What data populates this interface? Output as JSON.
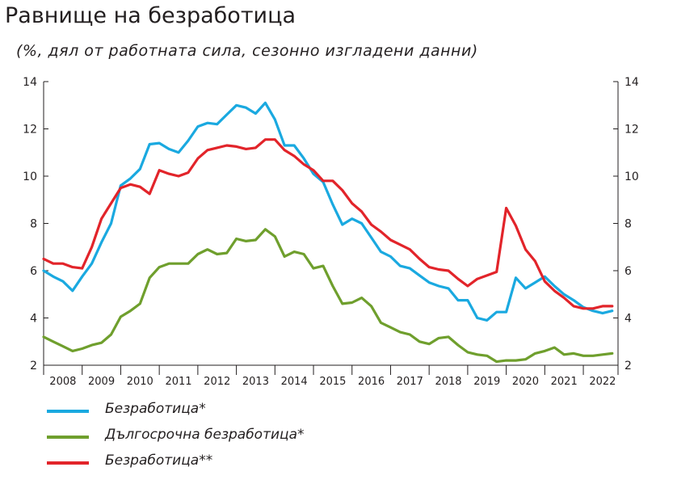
{
  "chart_data": {
    "type": "line",
    "title": "Равнище на безработица",
    "subtitle": "(%, дял от работната сила, сезонно изгладени данни)",
    "ylim": [
      2,
      14
    ],
    "yticks": [
      "2",
      "4",
      "6",
      "8",
      "10",
      "12",
      "14"
    ],
    "xlim": [
      2007.5,
      2022.4
    ],
    "year_labels": [
      "2008",
      "2009",
      "2010",
      "2011",
      "2012",
      "2013",
      "2014",
      "2015",
      "2016",
      "2017",
      "2018",
      "2019",
      "2020",
      "2021",
      "2022"
    ],
    "grid": false,
    "legend_position": "bottom-left",
    "series": [
      {
        "name": "Безработица*",
        "color": "#1aa9e0",
        "x": [
          2007.5,
          2007.75,
          2008.0,
          2008.25,
          2008.5,
          2008.75,
          2009.0,
          2009.25,
          2009.5,
          2009.75,
          2010.0,
          2010.25,
          2010.5,
          2010.75,
          2011.0,
          2011.25,
          2011.5,
          2011.75,
          2012.0,
          2012.25,
          2012.5,
          2012.75,
          2013.0,
          2013.25,
          2013.5,
          2013.75,
          2014.0,
          2014.25,
          2014.5,
          2014.75,
          2015.0,
          2015.25,
          2015.5,
          2015.75,
          2016.0,
          2016.25,
          2016.5,
          2016.75,
          2017.0,
          2017.25,
          2017.5,
          2017.75,
          2018.0,
          2018.25,
          2018.5,
          2018.75,
          2019.0,
          2019.25,
          2019.5,
          2019.75,
          2020.0,
          2020.25,
          2020.5,
          2020.75,
          2021.0,
          2021.25,
          2021.5,
          2021.75,
          2022.0,
          2022.25
        ],
        "y": [
          6.0,
          5.75,
          5.55,
          5.15,
          5.75,
          6.3,
          7.2,
          8.0,
          9.6,
          9.9,
          10.3,
          11.35,
          11.4,
          11.15,
          11.0,
          11.5,
          12.1,
          12.25,
          12.2,
          12.6,
          13.0,
          12.9,
          12.65,
          13.1,
          12.4,
          11.3,
          11.3,
          10.75,
          10.1,
          9.75,
          8.8,
          7.95,
          8.2,
          8.0,
          7.4,
          6.8,
          6.6,
          6.2,
          6.1,
          5.8,
          5.5,
          5.35,
          5.25,
          4.75,
          4.75,
          4.0,
          3.9,
          4.25,
          4.25,
          5.7,
          5.25,
          5.5,
          5.75,
          5.35,
          5.0,
          4.75,
          4.45,
          4.3,
          4.2,
          4.3
        ]
      },
      {
        "name": "Дългосрочна безработица*",
        "color": "#6f9f2d",
        "x": [
          2007.5,
          2007.75,
          2008.0,
          2008.25,
          2008.5,
          2008.75,
          2009.0,
          2009.25,
          2009.5,
          2009.75,
          2010.0,
          2010.25,
          2010.5,
          2010.75,
          2011.0,
          2011.25,
          2011.5,
          2011.75,
          2012.0,
          2012.25,
          2012.5,
          2012.75,
          2013.0,
          2013.25,
          2013.5,
          2013.75,
          2014.0,
          2014.25,
          2014.5,
          2014.75,
          2015.0,
          2015.25,
          2015.5,
          2015.75,
          2016.0,
          2016.25,
          2016.5,
          2016.75,
          2017.0,
          2017.25,
          2017.5,
          2017.75,
          2018.0,
          2018.25,
          2018.5,
          2018.75,
          2019.0,
          2019.25,
          2019.5,
          2019.75,
          2020.0,
          2020.25,
          2020.5,
          2020.75,
          2021.0,
          2021.25,
          2021.5,
          2021.75,
          2022.0,
          2022.25
        ],
        "y": [
          3.2,
          3.0,
          2.8,
          2.6,
          2.7,
          2.85,
          2.95,
          3.3,
          4.05,
          4.3,
          4.6,
          5.7,
          6.15,
          6.3,
          6.3,
          6.3,
          6.7,
          6.9,
          6.7,
          6.75,
          7.35,
          7.25,
          7.3,
          7.75,
          7.45,
          6.6,
          6.8,
          6.7,
          6.1,
          6.2,
          5.35,
          4.6,
          4.65,
          4.85,
          4.5,
          3.8,
          3.6,
          3.4,
          3.3,
          3.0,
          2.9,
          3.15,
          3.2,
          2.85,
          2.55,
          2.45,
          2.4,
          2.15,
          2.2,
          2.2,
          2.25,
          2.5,
          2.6,
          2.75,
          2.45,
          2.5,
          2.4,
          2.4,
          2.45,
          2.5
        ]
      },
      {
        "name": "Безработица**",
        "color": "#e2242a",
        "x": [
          2007.5,
          2007.75,
          2008.0,
          2008.25,
          2008.5,
          2008.75,
          2009.0,
          2009.25,
          2009.5,
          2009.75,
          2010.0,
          2010.25,
          2010.5,
          2010.75,
          2011.0,
          2011.25,
          2011.5,
          2011.75,
          2012.0,
          2012.25,
          2012.5,
          2012.75,
          2013.0,
          2013.25,
          2013.5,
          2013.75,
          2014.0,
          2014.25,
          2014.5,
          2014.75,
          2015.0,
          2015.25,
          2015.5,
          2015.75,
          2016.0,
          2016.25,
          2016.5,
          2016.75,
          2017.0,
          2017.25,
          2017.5,
          2017.75,
          2018.0,
          2018.25,
          2018.5,
          2018.75,
          2019.0,
          2019.25,
          2019.5,
          2019.75,
          2020.0,
          2020.25,
          2020.5,
          2020.75,
          2021.0,
          2021.25,
          2021.5,
          2021.75,
          2022.0,
          2022.25
        ],
        "y": [
          6.5,
          6.3,
          6.3,
          6.15,
          6.1,
          7.0,
          8.2,
          8.85,
          9.5,
          9.65,
          9.55,
          9.25,
          10.25,
          10.1,
          10.0,
          10.15,
          10.75,
          11.1,
          11.2,
          11.3,
          11.25,
          11.15,
          11.2,
          11.55,
          11.55,
          11.1,
          10.85,
          10.5,
          10.25,
          9.8,
          9.8,
          9.4,
          8.85,
          8.5,
          7.95,
          7.65,
          7.3,
          7.1,
          6.9,
          6.5,
          6.15,
          6.05,
          6.0,
          5.65,
          5.35,
          5.65,
          5.8,
          5.95,
          8.65,
          7.9,
          6.9,
          6.4,
          5.55,
          5.15,
          4.85,
          4.5,
          4.4,
          4.4,
          4.5,
          4.5
        ]
      }
    ]
  }
}
